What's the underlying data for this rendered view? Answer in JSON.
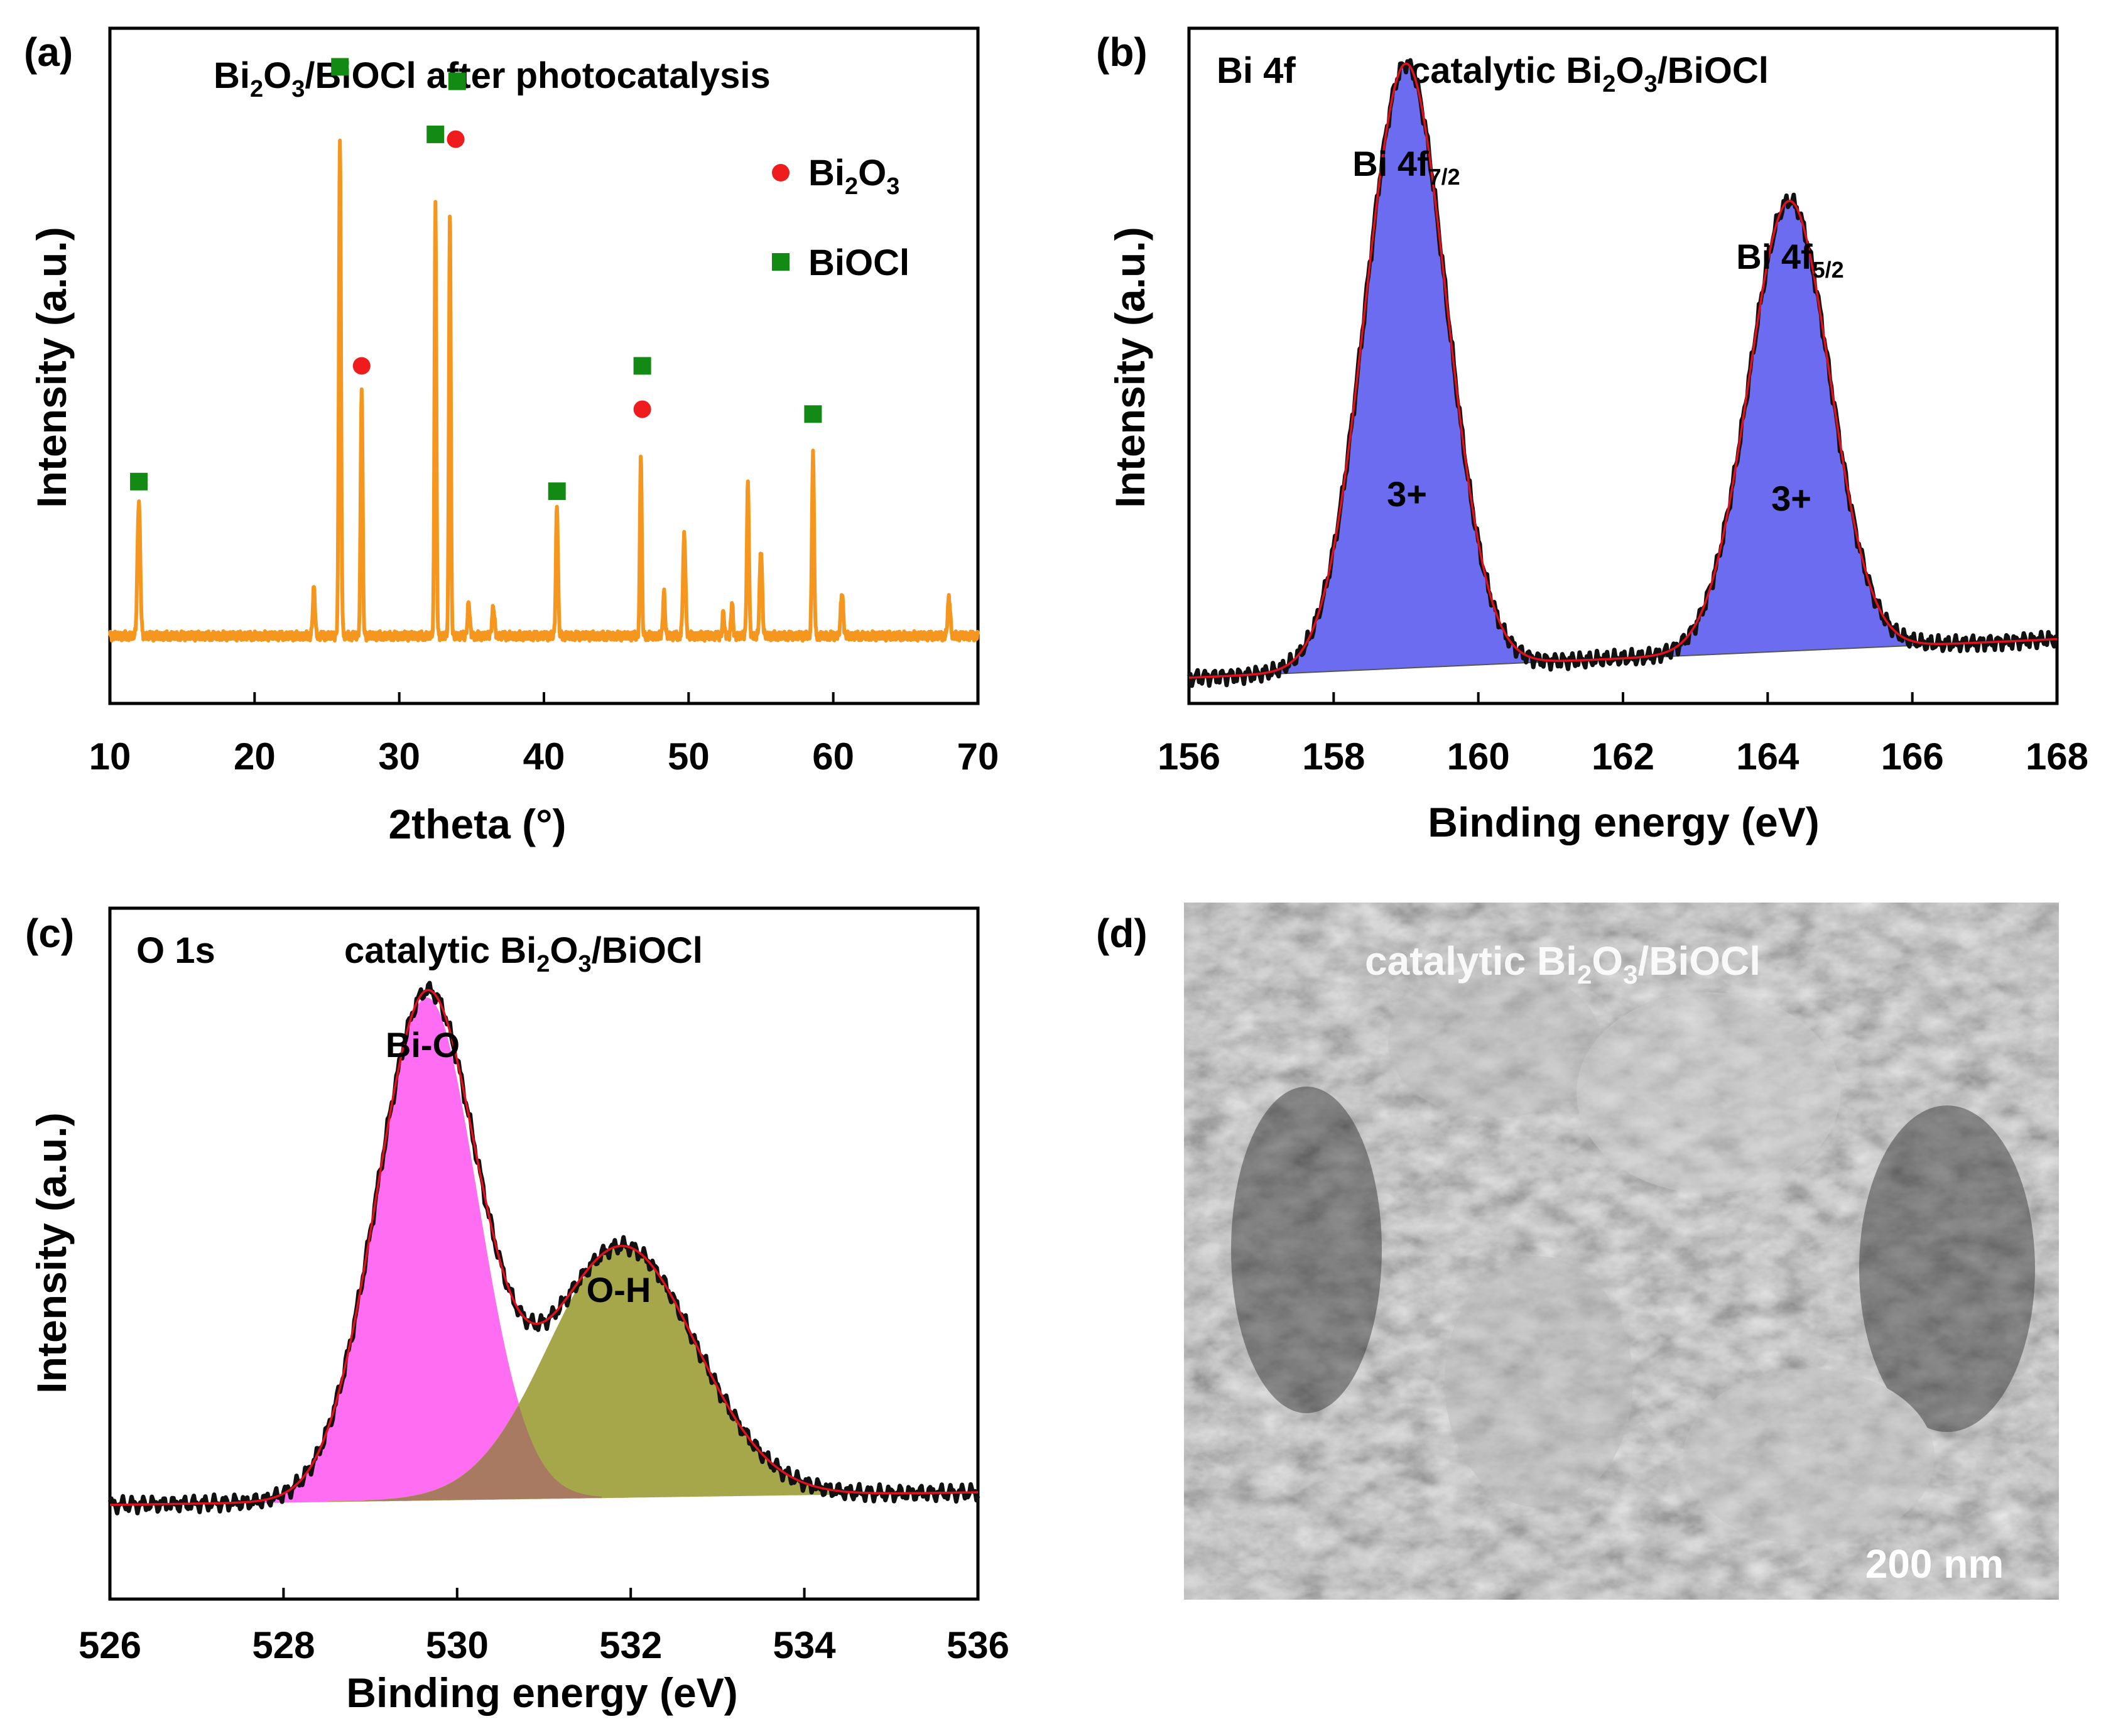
{
  "colors": {
    "xrd_line": "#F5961E",
    "bi2o3_marker": "#EE1C1C",
    "biocl_marker": "#138A13",
    "fit_red": "#E0101E",
    "raw_black": "#111111",
    "bi_fill": "#6C6CF0",
    "o_bio_fill": "#FF6EF2",
    "o_oh_fill": "#A6A64A",
    "overlap_fill": "#A87A62"
  },
  "panels": {
    "a": {
      "label": "(a)",
      "title_main": "Bi",
      "title_sub": "2",
      "title_mid": "O",
      "title_sub2": "3",
      "title_rest": "/BiOCl after photocatalysis",
      "legend": [
        {
          "marker": "circle",
          "base": "Bi",
          "sub1": "2",
          "mid": "O",
          "sub2": "3"
        },
        {
          "marker": "square",
          "text": "BiOCl"
        }
      ]
    },
    "b": {
      "label": "(b)",
      "region": "Bi 4f",
      "sample_pre": "catalytic Bi",
      "sample_sub": "2",
      "sample_mid": "O",
      "sample_sub2": "3",
      "sample_post": "/BiOCl",
      "peak1_base": "Bi 4f",
      "peak1_sub": "7/2",
      "peak2_base": "Bi 4f",
      "peak2_sub": "5/2",
      "ox1": "3+",
      "ox2": "3+"
    },
    "c": {
      "label": "(c)",
      "region": "O 1s",
      "sample_pre": "catalytic Bi",
      "sample_sub": "2",
      "sample_mid": "O",
      "sample_sub2": "3",
      "sample_post": "/BiOCl",
      "comp1": "Bi-O",
      "comp2": "O-H"
    },
    "d": {
      "label": "(d)",
      "sample_pre": "catalytic Bi",
      "sample_sub": "2",
      "sample_mid": "O",
      "sample_sub2": "3",
      "sample_post": "/BiOCl",
      "scale_bar": "200 nm"
    }
  },
  "chart_data": [
    {
      "type": "line",
      "panel": "a",
      "title": "Bi2O3/BiOCl after photocatalysis",
      "xlabel": "2theta (°)",
      "ylabel": "Intensity (a.u.)",
      "xlim": [
        10,
        70
      ],
      "ylim": [
        0,
        1.4
      ],
      "xticks": [
        10,
        20,
        30,
        40,
        50,
        60,
        70
      ],
      "baseline": 0.14,
      "peaks": [
        {
          "x": 12.0,
          "h": 0.28,
          "w": 0.22
        },
        {
          "x": 24.1,
          "h": 0.1,
          "w": 0.18
        },
        {
          "x": 25.9,
          "h": 1.03,
          "w": 0.17
        },
        {
          "x": 27.4,
          "h": 0.52,
          "w": 0.16
        },
        {
          "x": 32.5,
          "h": 0.9,
          "w": 0.15
        },
        {
          "x": 33.5,
          "h": 0.89,
          "w": 0.15
        },
        {
          "x": 34.8,
          "h": 0.07,
          "w": 0.18
        },
        {
          "x": 36.5,
          "h": 0.06,
          "w": 0.2
        },
        {
          "x": 40.9,
          "h": 0.27,
          "w": 0.17
        },
        {
          "x": 46.7,
          "h": 0.38,
          "w": 0.15
        },
        {
          "x": 48.3,
          "h": 0.09,
          "w": 0.16
        },
        {
          "x": 49.7,
          "h": 0.21,
          "w": 0.2
        },
        {
          "x": 52.4,
          "h": 0.05,
          "w": 0.15
        },
        {
          "x": 53.0,
          "h": 0.07,
          "w": 0.15
        },
        {
          "x": 54.1,
          "h": 0.32,
          "w": 0.17
        },
        {
          "x": 55.0,
          "h": 0.18,
          "w": 0.2
        },
        {
          "x": 58.6,
          "h": 0.38,
          "w": 0.17
        },
        {
          "x": 60.6,
          "h": 0.09,
          "w": 0.2
        },
        {
          "x": 68.0,
          "h": 0.08,
          "w": 0.2
        }
      ],
      "markers": [
        {
          "x": 12.0,
          "y": 0.46,
          "phase": "BiOCl"
        },
        {
          "x": 25.9,
          "y": 1.32,
          "phase": "BiOCl"
        },
        {
          "x": 27.4,
          "y": 0.7,
          "phase": "Bi2O3"
        },
        {
          "x": 32.5,
          "y": 1.18,
          "phase": "BiOCl"
        },
        {
          "x": 33.9,
          "y": 1.17,
          "phase": "Bi2O3"
        },
        {
          "x": 34.0,
          "y": 1.29,
          "phase": "BiOCl"
        },
        {
          "x": 40.9,
          "y": 0.44,
          "phase": "BiOCl"
        },
        {
          "x": 46.8,
          "y": 0.61,
          "phase": "Bi2O3"
        },
        {
          "x": 46.8,
          "y": 0.7,
          "phase": "BiOCl"
        },
        {
          "x": 58.6,
          "y": 0.6,
          "phase": "BiOCl"
        }
      ]
    },
    {
      "type": "area",
      "panel": "b",
      "title": "Bi 4f catalytic Bi2O3/BiOCl",
      "xlabel": "Binding energy (eV)",
      "ylabel": "Intensity (a.u.)",
      "xlim": [
        156,
        168
      ],
      "ylim": [
        0,
        1.05
      ],
      "xticks": [
        156,
        158,
        160,
        162,
        164,
        166,
        168
      ],
      "background": {
        "x0": 156,
        "y0": 0.04,
        "x1": 168,
        "y1": 0.1
      },
      "series": [
        {
          "name": "Bi 4f7/2 (3+)",
          "center": 159.0,
          "amplitude": 0.94,
          "sigma": 0.56
        },
        {
          "name": "Bi 4f5/2 (3+)",
          "center": 164.3,
          "amplitude": 0.7,
          "sigma": 0.56
        }
      ]
    },
    {
      "type": "area",
      "panel": "c",
      "title": "O 1s catalytic Bi2O3/BiOCl",
      "xlabel": "Binding energy (eV)",
      "ylabel": "Intensity (a.u.)",
      "xlim": [
        526,
        536
      ],
      "ylim": [
        0,
        1.1
      ],
      "xticks": [
        526,
        528,
        530,
        532,
        534,
        536
      ],
      "background": {
        "x0": 526,
        "y0": 0.15,
        "x1": 536,
        "y1": 0.17
      },
      "series": [
        {
          "name": "Bi-O",
          "center": 529.65,
          "amplitude": 0.8,
          "sigma": 0.58
        },
        {
          "name": "O-H",
          "center": 531.9,
          "amplitude": 0.4,
          "sigma": 0.85
        }
      ]
    }
  ]
}
